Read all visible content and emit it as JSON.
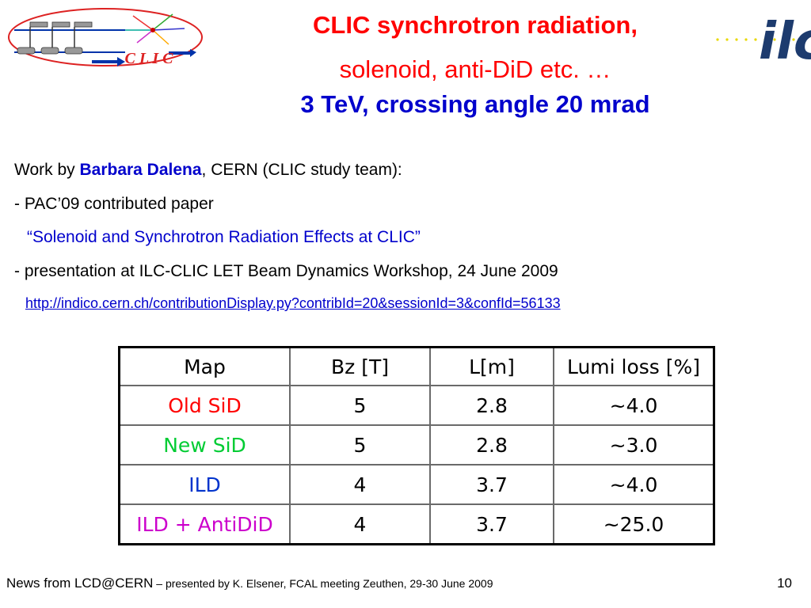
{
  "logos": {
    "clic_text": "C L I C",
    "ilc_text": "ilc"
  },
  "title": {
    "line1": "CLIC synchrotron radiation,",
    "line2": "solenoid, anti-DiD etc. …",
    "line3": "3 TeV, crossing angle 20 mrad"
  },
  "body": {
    "work_by_prefix": "Work by ",
    "author": "Barbara Dalena",
    "work_by_suffix": ", CERN (CLIC study team):",
    "item1": "- PAC’09 contributed paper",
    "item1_title": "“Solenoid and Synchrotron Radiation Effects at CLIC”",
    "item2": "- presentation at ILC-CLIC LET Beam Dynamics Workshop, 24 June 2009",
    "link": "http://indico.cern.ch/contributionDisplay.py?contribId=20&sessionId=3&confId=56133"
  },
  "table": {
    "headers": [
      "Map",
      "Bz [T]",
      "L[m]",
      "Lumi loss [%]"
    ],
    "rows": [
      {
        "map": "Old SiD",
        "bz": "5",
        "l": "2.8",
        "lumi": "~4.0",
        "color": "#ff0000"
      },
      {
        "map": "New SiD",
        "bz": "5",
        "l": "2.8",
        "lumi": "~3.0",
        "color": "#00cc33"
      },
      {
        "map": "ILD",
        "bz": "4",
        "l": "3.7",
        "lumi": "~4.0",
        "color": "#0033cc"
      },
      {
        "map": "ILD + AntiDiD",
        "bz": "4",
        "l": "3.7",
        "lumi": "~25.0",
        "color": "#cc00cc"
      }
    ]
  },
  "footer": {
    "main": "News from LCD@CERN",
    "detail": " – presented by K. Elsener, FCAL meeting Zeuthen, 29-30 June 2009",
    "page": "10"
  }
}
